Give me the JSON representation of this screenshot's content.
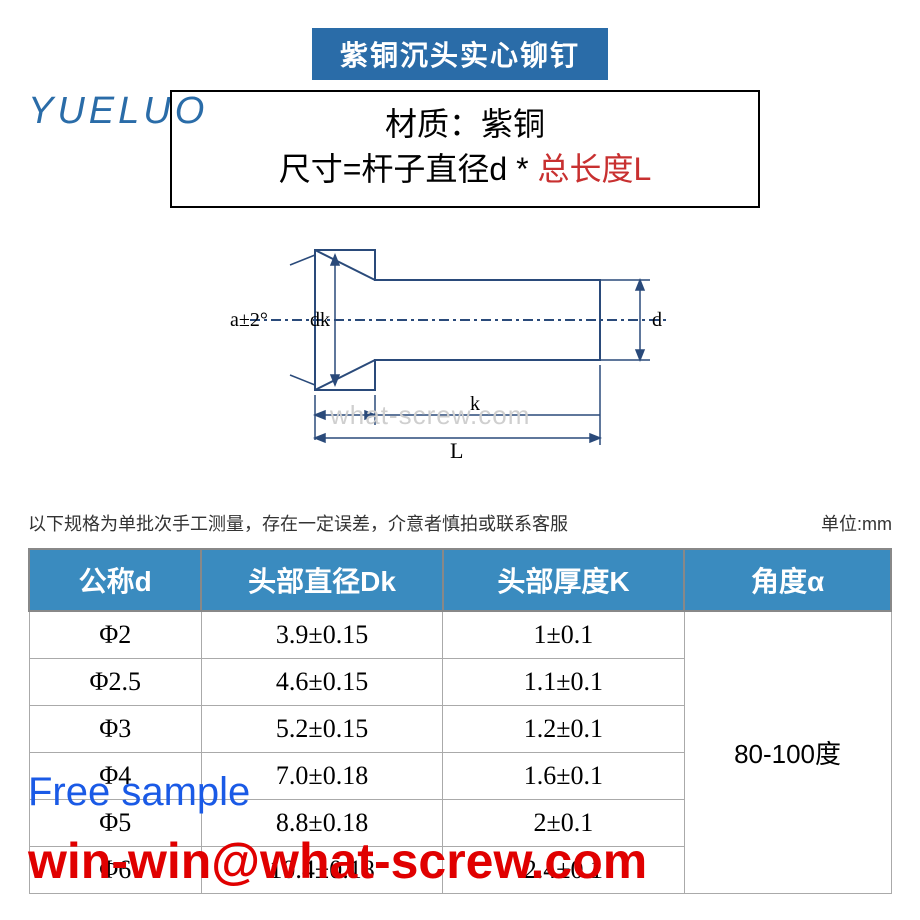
{
  "title_banner": "紫铜沉头实心铆钉",
  "logo_text": "YUELUO",
  "spec_box": {
    "line1": "材质：紫铜",
    "line2_prefix": "尺寸=杆子直径d * ",
    "line2_highlight": "总长度L"
  },
  "diagram": {
    "label_a": "a±2°",
    "label_dk": "dk",
    "label_k": "k",
    "label_L": "L",
    "label_d": "d",
    "line_color": "#2a4a7a",
    "fill_color": "#ffffff"
  },
  "watermark_url": "what-screw.com",
  "note": {
    "left": "以下规格为单批次手工测量，存在一定误差，介意者慎拍或联系客服",
    "right": "单位:mm"
  },
  "table": {
    "header_bg": "#3a8bbf",
    "header_fg": "#ffffff",
    "border_color": "#888888",
    "columns": [
      "公称d",
      "头部直径Dk",
      "头部厚度K",
      "角度α"
    ],
    "col_widths": [
      "20%",
      "28%",
      "28%",
      "24%"
    ],
    "rows": [
      [
        "Φ2",
        "3.9±0.15",
        "1±0.1"
      ],
      [
        "Φ2.5",
        "4.6±0.15",
        "1.1±0.1"
      ],
      [
        "Φ3",
        "5.2±0.15",
        "1.2±0.1"
      ],
      [
        "Φ4",
        "7.0±0.18",
        "1.6±0.1"
      ],
      [
        "Φ5",
        "8.8±0.18",
        "2±0.1"
      ],
      [
        "Φ6",
        "10.4±0.18",
        "2.4±0.1"
      ]
    ],
    "angle_value": "80-100度"
  },
  "overlays": {
    "free_sample": "Free sample",
    "email": "win-win@what-screw.com"
  },
  "colors": {
    "banner_bg": "#2a6ca8",
    "logo": "#2a6ca8",
    "highlight_red": "#c83030",
    "overlay_blue": "#1a5ae6",
    "overlay_red": "#e00000",
    "watermark": "#cfcfcf"
  }
}
